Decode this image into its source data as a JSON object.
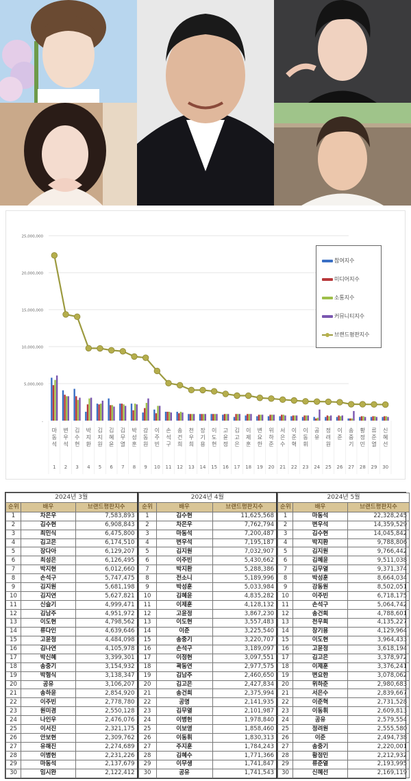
{
  "collage": {
    "photos": [
      {
        "position": "top-left",
        "subject": "young man with flowers, blue sky background"
      },
      {
        "position": "bottom-left",
        "subject": "woman making heart with hands"
      },
      {
        "position": "center",
        "subject": "smiling man in black jacket and white t-shirt"
      },
      {
        "position": "top-right",
        "subject": "man in black turtleneck, dark background"
      },
      {
        "position": "bottom-right",
        "subject": "man in white t-shirt, outdoor fence background"
      }
    ]
  },
  "chart_data": {
    "type": "bar",
    "title": "",
    "xlabel": "",
    "ylabel": "",
    "ylim": [
      0,
      25000000
    ],
    "yticks": [
      "-",
      "5,000,000",
      "10,000,000",
      "15,000,000",
      "20,000,000",
      "25,000,000"
    ],
    "grid": true,
    "legend_position": "right",
    "categories": [
      "마동석",
      "변우석",
      "김수현",
      "박지환",
      "김지원",
      "김혜윤",
      "김무열",
      "박성훈",
      "강동원",
      "이주빈",
      "손석구",
      "송건희",
      "천우희",
      "장기용",
      "이도현",
      "고윤정",
      "김고은",
      "이제훈",
      "변요한",
      "위하준",
      "서은수",
      "이준혁",
      "이동휘",
      "공유",
      "정려원",
      "이준",
      "송중기",
      "황정민",
      "류준열",
      "신혜선"
    ],
    "ranks": [
      1,
      2,
      3,
      4,
      5,
      6,
      7,
      8,
      9,
      10,
      11,
      12,
      13,
      14,
      15,
      16,
      17,
      18,
      19,
      20,
      21,
      22,
      23,
      24,
      25,
      26,
      27,
      28,
      29,
      30
    ],
    "series": [
      {
        "name": "참여지수",
        "color": "#3a6fc4",
        "kind": "bar",
        "values": [
          5800000,
          4100000,
          4300000,
          1200000,
          2300000,
          3000000,
          2300000,
          2300000,
          1100000,
          1500000,
          1200000,
          1200000,
          900000,
          900000,
          900000,
          800000,
          500000,
          700000,
          600000,
          600000,
          600000,
          600000,
          500000,
          500000,
          500000,
          500000,
          300000,
          500000,
          500000,
          500000
        ]
      },
      {
        "name": "미디어지수",
        "color": "#b8393b",
        "kind": "bar",
        "values": [
          4800000,
          3500000,
          3300000,
          2200000,
          2200000,
          2100000,
          2300000,
          1400000,
          1700000,
          1000000,
          1200000,
          1000000,
          900000,
          900000,
          900000,
          900000,
          900000,
          900000,
          800000,
          800000,
          800000,
          700000,
          700000,
          300000,
          700000,
          700000,
          300000,
          600000,
          600000,
          600000
        ]
      },
      {
        "name": "소통지수",
        "color": "#9ebf4a",
        "kind": "bar",
        "values": [
          5500000,
          3300000,
          2800000,
          3000000,
          2300000,
          2100000,
          2200000,
          2300000,
          2400000,
          2000000,
          1200000,
          1200000,
          900000,
          900000,
          900000,
          900000,
          900000,
          900000,
          800000,
          800000,
          800000,
          700000,
          700000,
          400000,
          600000,
          600000,
          300000,
          600000,
          600000,
          600000
        ]
      },
      {
        "name": "커뮤니티지수",
        "color": "#7a57b0",
        "kind": "bar",
        "values": [
          6100000,
          3300000,
          3100000,
          3100000,
          2700000,
          1900000,
          2000000,
          2200000,
          3000000,
          2000000,
          1100000,
          1100000,
          900000,
          900000,
          900000,
          900000,
          900000,
          900000,
          800000,
          800000,
          700000,
          700000,
          700000,
          1500000,
          700000,
          700000,
          1300000,
          500000,
          500000,
          500000
        ]
      },
      {
        "name": "브랜드평판지수",
        "color": "#9c9a3f",
        "kind": "line",
        "values": [
          22328245,
          14359529,
          14045842,
          9788806,
          9766442,
          9511038,
          9371374,
          8664034,
          8502051,
          6718175,
          5064742,
          4788601,
          4135227,
          4129964,
          3964433,
          3618194,
          3378972,
          3376241,
          3078062,
          2980683,
          2839667,
          2731528,
          2609813,
          2579554,
          2555580,
          2494738,
          2220001,
          2212932,
          2193995,
          2169119
        ]
      }
    ]
  },
  "tables": [
    {
      "title": "2024년 3월",
      "headers": [
        "순위",
        "배우",
        "브랜드평판지수"
      ],
      "rows": [
        [
          "1",
          "차은우",
          "7,583,893"
        ],
        [
          "2",
          "김수현",
          "6,908,843"
        ],
        [
          "3",
          "최민식",
          "6,475,800"
        ],
        [
          "4",
          "김고은",
          "6,174,510"
        ],
        [
          "5",
          "장다아",
          "6,129,207"
        ],
        [
          "6",
          "최성은",
          "6,126,495"
        ],
        [
          "7",
          "박지현",
          "6,012,660"
        ],
        [
          "8",
          "손석구",
          "5,747,475"
        ],
        [
          "9",
          "김지원",
          "5,681,198"
        ],
        [
          "10",
          "김지연",
          "5,627,821"
        ],
        [
          "11",
          "신슬기",
          "4,999,471"
        ],
        [
          "12",
          "김남주",
          "4,951,972"
        ],
        [
          "13",
          "이도현",
          "4,798,562"
        ],
        [
          "14",
          "류다인",
          "4,639,646"
        ],
        [
          "15",
          "고윤정",
          "4,484,098"
        ],
        [
          "16",
          "김나연",
          "4,105,978"
        ],
        [
          "17",
          "박신혜",
          "3,399,301"
        ],
        [
          "18",
          "송중기",
          "3,154,932"
        ],
        [
          "19",
          "박형식",
          "3,138,347"
        ],
        [
          "20",
          "공유",
          "3,106,207"
        ],
        [
          "21",
          "송하윤",
          "2,854,920"
        ],
        [
          "22",
          "이주빈",
          "2,778,780"
        ],
        [
          "23",
          "원미경",
          "2,550,128"
        ],
        [
          "24",
          "나인우",
          "2,476,076"
        ],
        [
          "25",
          "이서진",
          "2,321,175"
        ],
        [
          "26",
          "안보현",
          "2,309,762"
        ],
        [
          "27",
          "유해진",
          "2,274,689"
        ],
        [
          "28",
          "이병헌",
          "2,231,226"
        ],
        [
          "29",
          "마동석",
          "2,137,679"
        ],
        [
          "30",
          "임시완",
          "2,122,412"
        ]
      ]
    },
    {
      "title": "2024년 4월",
      "headers": [
        "순위",
        "배우",
        "브랜드평판지수"
      ],
      "rows": [
        [
          "1",
          "김수현",
          "11,625,568"
        ],
        [
          "2",
          "차은우",
          "7,762,794"
        ],
        [
          "3",
          "마동석",
          "7,200,487"
        ],
        [
          "4",
          "변우석",
          "7,195,187"
        ],
        [
          "5",
          "김지원",
          "7,032,907"
        ],
        [
          "6",
          "이주빈",
          "5,430,662"
        ],
        [
          "7",
          "박지환",
          "5,288,386"
        ],
        [
          "8",
          "전소니",
          "5,189,996"
        ],
        [
          "9",
          "박성훈",
          "5,033,984"
        ],
        [
          "10",
          "김혜윤",
          "4,835,282"
        ],
        [
          "11",
          "이제훈",
          "4,128,132"
        ],
        [
          "12",
          "고윤정",
          "3,867,230"
        ],
        [
          "13",
          "이도현",
          "3,557,483"
        ],
        [
          "14",
          "이준",
          "3,225,540"
        ],
        [
          "15",
          "송중기",
          "3,220,707"
        ],
        [
          "16",
          "손석구",
          "3,189,097"
        ],
        [
          "17",
          "이정현",
          "3,097,551"
        ],
        [
          "18",
          "곽동연",
          "2,977,575"
        ],
        [
          "19",
          "김남주",
          "2,460,650"
        ],
        [
          "20",
          "김고은",
          "2,427,834"
        ],
        [
          "21",
          "송건희",
          "2,375,994"
        ],
        [
          "22",
          "공명",
          "2,141,935"
        ],
        [
          "23",
          "김무열",
          "2,101,987"
        ],
        [
          "24",
          "이병헌",
          "1,978,840"
        ],
        [
          "25",
          "이보영",
          "1,858,460"
        ],
        [
          "26",
          "이동휘",
          "1,830,313"
        ],
        [
          "27",
          "주지훈",
          "1,784,243"
        ],
        [
          "28",
          "김혜수",
          "1,771,366"
        ],
        [
          "29",
          "이무생",
          "1,741,847"
        ],
        [
          "30",
          "공유",
          "1,741,543"
        ]
      ]
    },
    {
      "title": "2024년 5월",
      "headers": [
        "순위",
        "배우",
        "브랜드평판지수"
      ],
      "rows": [
        [
          "1",
          "마동석",
          "22,328,245"
        ],
        [
          "2",
          "변우석",
          "14,359,529"
        ],
        [
          "3",
          "김수현",
          "14,045,842"
        ],
        [
          "4",
          "박지환",
          "9,788,806"
        ],
        [
          "5",
          "김지원",
          "9,766,442"
        ],
        [
          "6",
          "김혜윤",
          "9,511,038"
        ],
        [
          "7",
          "김무열",
          "9,371,374"
        ],
        [
          "8",
          "박성훈",
          "8,664,034"
        ],
        [
          "9",
          "강동원",
          "8,502,051"
        ],
        [
          "10",
          "이주빈",
          "6,718,175"
        ],
        [
          "11",
          "손석구",
          "5,064,742"
        ],
        [
          "12",
          "송건희",
          "4,788,601"
        ],
        [
          "13",
          "천우희",
          "4,135,227"
        ],
        [
          "14",
          "장기용",
          "4,129,964"
        ],
        [
          "15",
          "이도현",
          "3,964,433"
        ],
        [
          "16",
          "고윤정",
          "3,618,194"
        ],
        [
          "17",
          "김고은",
          "3,378,972"
        ],
        [
          "18",
          "이제훈",
          "3,376,241"
        ],
        [
          "19",
          "변요한",
          "3,078,062"
        ],
        [
          "20",
          "위하준",
          "2,980,683"
        ],
        [
          "21",
          "서은수",
          "2,839,667"
        ],
        [
          "22",
          "이준혁",
          "2,731,528"
        ],
        [
          "23",
          "이동휘",
          "2,609,813"
        ],
        [
          "24",
          "공유",
          "2,579,554"
        ],
        [
          "25",
          "정려원",
          "2,555,580"
        ],
        [
          "26",
          "이준",
          "2,494,738"
        ],
        [
          "27",
          "송중기",
          "2,220,001"
        ],
        [
          "28",
          "황정민",
          "2,212,932"
        ],
        [
          "29",
          "류준열",
          "2,193,995"
        ],
        [
          "30",
          "신혜선",
          "2,169,119"
        ]
      ]
    }
  ]
}
